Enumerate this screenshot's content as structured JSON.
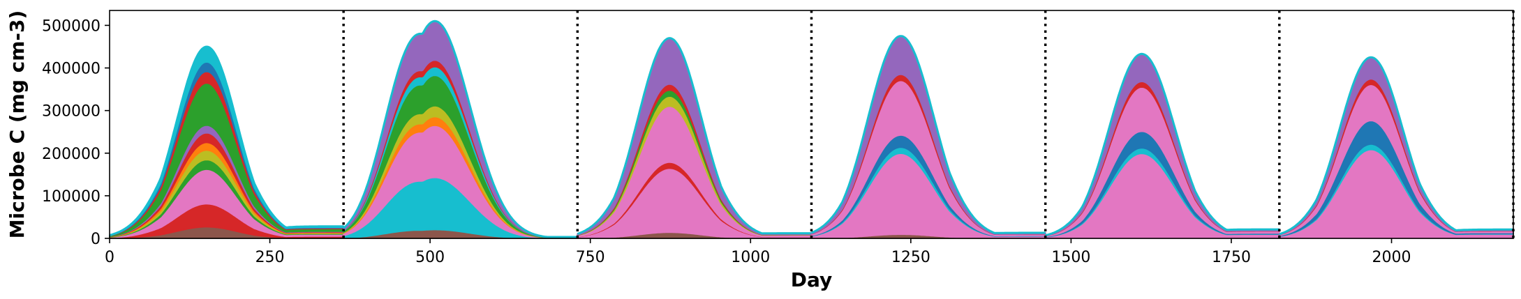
{
  "chart_data": {
    "type": "area",
    "stacked": true,
    "title": "",
    "xlabel": "Day",
    "ylabel": "Microbe C (mg cm-3)",
    "xlim": [
      0,
      2190
    ],
    "ylim": [
      0,
      535000
    ],
    "xticks": [
      0,
      250,
      500,
      750,
      1000,
      1250,
      1500,
      1750,
      2000
    ],
    "xtick_labels": [
      "0",
      "250",
      "500",
      "750",
      "1000",
      "1250",
      "1500",
      "1750",
      "2000"
    ],
    "yticks": [
      0,
      100000,
      200000,
      300000,
      400000,
      500000
    ],
    "ytick_labels": [
      "0",
      "100000",
      "200000",
      "300000",
      "400000",
      "500000"
    ],
    "year_boundaries": [
      365,
      730,
      1095,
      1460,
      1825,
      2190
    ],
    "boundary_style": "dotted black vertical lines",
    "grid": false,
    "legend": "none",
    "years": [
      {
        "start_day": 0,
        "total_peak": 450000,
        "peaks": [
          {
            "day": 135,
            "value": 405000
          },
          {
            "day": 167,
            "value": 450000
          }
        ],
        "end_value": 35000,
        "layers": [
          {
            "color": "#8c564b",
            "fraction": 0.06
          },
          {
            "color": "#d62728",
            "fraction": 0.12
          },
          {
            "color": "#e377c2",
            "fraction": 0.18
          },
          {
            "color": "#2ca02c",
            "fraction": 0.05
          },
          {
            "color": "#bcbd22",
            "fraction": 0.05
          },
          {
            "color": "#ff7f0e",
            "fraction": 0.04
          },
          {
            "color": "#d62728",
            "fraction": 0.05
          },
          {
            "color": "#9467bd",
            "fraction": 0.04
          },
          {
            "color": "#2ca02c",
            "fraction": 0.22
          },
          {
            "color": "#d62728",
            "fraction": 0.06
          },
          {
            "color": "#1f77b4",
            "fraction": 0.05
          },
          {
            "color": "#17becf",
            "fraction": 0.08
          }
        ]
      },
      {
        "start_day": 365,
        "total_peak": 510000,
        "peaks": [
          {
            "day": 470,
            "value": 510000
          },
          {
            "day": 545,
            "value": 320000
          }
        ],
        "end_value": 3000,
        "layers": [
          {
            "color": "#8c564b",
            "fraction": 0.04
          },
          {
            "color": "#17becf",
            "fraction": 0.24
          },
          {
            "color": "#e377c2",
            "fraction": 0.24
          },
          {
            "color": "#ff7f0e",
            "fraction": 0.04
          },
          {
            "color": "#bcbd22",
            "fraction": 0.05
          },
          {
            "color": "#2ca02c",
            "fraction": 0.14
          },
          {
            "color": "#17becf",
            "fraction": 0.04
          },
          {
            "color": "#d62728",
            "fraction": 0.03
          },
          {
            "color": "#9467bd",
            "fraction": 0.18
          }
        ]
      },
      {
        "start_day": 730,
        "total_peak": 470000,
        "peaks": [
          {
            "day": 855,
            "value": 470000
          },
          {
            "day": 895,
            "value": 450000
          }
        ],
        "end_value": 15000,
        "layers": [
          {
            "color": "#8c564b",
            "fraction": 0.03
          },
          {
            "color": "#e377c2",
            "fraction": 0.32
          },
          {
            "color": "#d62728",
            "fraction": 0.03
          },
          {
            "color": "#e377c2",
            "fraction": 0.28
          },
          {
            "color": "#bcbd22",
            "fraction": 0.05
          },
          {
            "color": "#2ca02c",
            "fraction": 0.03
          },
          {
            "color": "#d62728",
            "fraction": 0.03
          },
          {
            "color": "#9467bd",
            "fraction": 0.23
          }
        ]
      },
      {
        "start_day": 1095,
        "total_peak": 475000,
        "peaks": [
          {
            "day": 1215,
            "value": 475000
          },
          {
            "day": 1260,
            "value": 410000
          }
        ],
        "end_value": 15000,
        "layers": [
          {
            "color": "#8c564b",
            "fraction": 0.02
          },
          {
            "color": "#e377c2",
            "fraction": 0.4
          },
          {
            "color": "#17becf",
            "fraction": 0.03
          },
          {
            "color": "#1f77b4",
            "fraction": 0.06
          },
          {
            "color": "#e377c2",
            "fraction": 0.27
          },
          {
            "color": "#d62728",
            "fraction": 0.03
          },
          {
            "color": "#9467bd",
            "fraction": 0.19
          }
        ]
      },
      {
        "start_day": 1460,
        "total_peak": 433000,
        "peaks": [
          {
            "day": 1590,
            "value": 433000
          },
          {
            "day": 1635,
            "value": 400000
          }
        ],
        "end_value": 25000,
        "layers": [
          {
            "color": "#e377c2",
            "fraction": 0.46
          },
          {
            "color": "#17becf",
            "fraction": 0.03
          },
          {
            "color": "#1f77b4",
            "fraction": 0.09
          },
          {
            "color": "#e377c2",
            "fraction": 0.24
          },
          {
            "color": "#d62728",
            "fraction": 0.03
          },
          {
            "color": "#9467bd",
            "fraction": 0.15
          }
        ]
      },
      {
        "start_day": 1825,
        "total_peak": 425000,
        "peaks": [
          {
            "day": 1950,
            "value": 425000
          },
          {
            "day": 1990,
            "value": 385000
          }
        ],
        "end_value": 25000,
        "layers": [
          {
            "color": "#e377c2",
            "fraction": 0.49
          },
          {
            "color": "#17becf",
            "fraction": 0.03
          },
          {
            "color": "#1f77b4",
            "fraction": 0.13
          },
          {
            "color": "#e377c2",
            "fraction": 0.2
          },
          {
            "color": "#d62728",
            "fraction": 0.03
          },
          {
            "color": "#9467bd",
            "fraction": 0.12
          }
        ]
      }
    ]
  }
}
